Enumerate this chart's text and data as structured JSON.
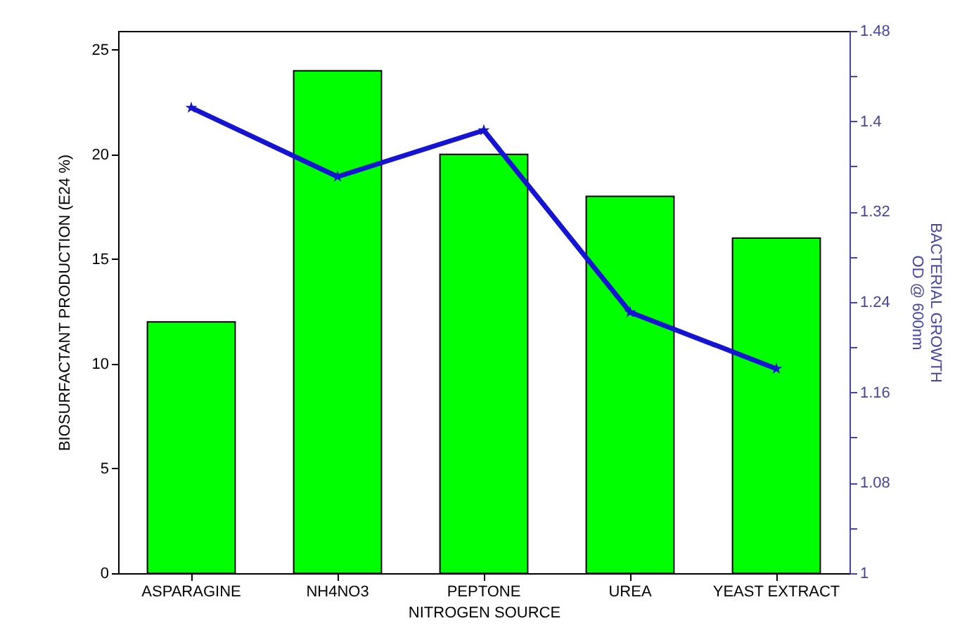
{
  "chart_data": {
    "type": "bar",
    "xlabel": "NITROGEN SOURCE",
    "ylabel": "BIOSURFACTANT PRODUCTION (E24 %)",
    "y2label": "BACTERIAL GROWTH\nOD @ 600nm",
    "categories": [
      "ASPARAGINE",
      "NH4NO3",
      "PEPTONE",
      "UREA",
      "YEAST EXTRACT"
    ],
    "series": [
      {
        "color": "#00ff00",
        "values": [
          12,
          24,
          20,
          18,
          16
        ]
      },
      {
        "type": "line",
        "axis": "y2",
        "color": "#1414d2",
        "values": [
          1.412,
          1.351,
          1.392,
          1.231,
          1.181
        ]
      }
    ],
    "ylim": [
      0,
      25.9
    ],
    "yticks": [
      0,
      5,
      10,
      15,
      20,
      25
    ],
    "y2lim": [
      1,
      1.48
    ],
    "y2ticks": [
      1,
      {
        "value": 1.04,
        "label": null
      },
      1.08,
      {
        "value": 1.12,
        "label": null
      },
      1.16,
      {
        "value": 1.2,
        "label": null
      },
      1.24,
      {
        "value": 1.28,
        "label": null
      },
      1.32,
      {
        "value": 1.36,
        "label": null
      },
      1.4,
      {
        "value": 1.44,
        "label": null
      },
      1.48
    ],
    "marker": "star",
    "line_style": "solid",
    "grid": false
  }
}
